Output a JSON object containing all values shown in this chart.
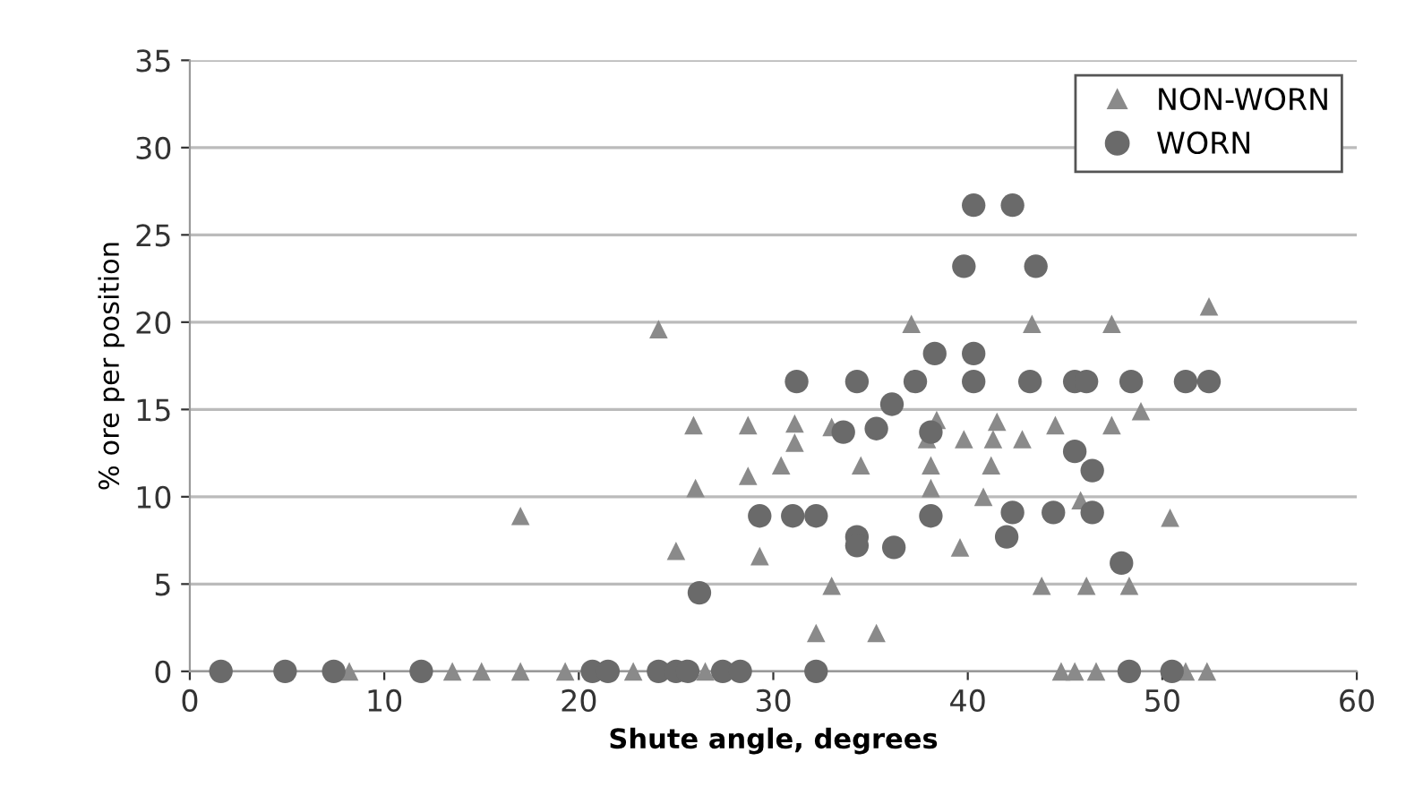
{
  "chart_data": {
    "type": "scatter",
    "xlabel": "Shute angle, degrees",
    "ylabel": "% ore per position",
    "xlim": [
      0,
      60
    ],
    "xticks": [
      0,
      10,
      20,
      30,
      40,
      50,
      60
    ],
    "ylim": [
      0,
      35
    ],
    "yticks": [
      0,
      5,
      10,
      15,
      20,
      25,
      30,
      35
    ],
    "grid": "y",
    "legend": "top right",
    "series": [
      {
        "name": "NON-WORN",
        "color": "#8a8a8a",
        "marker": "triangle",
        "x": [
          8.2,
          13.5,
          15.0,
          17.0,
          19.3,
          22.8,
          26.5,
          44.8,
          45.5,
          46.6,
          51.2,
          52.3,
          24.1,
          25.9,
          28.7,
          28.7,
          26.0,
          17.0,
          25.0,
          37.1,
          43.3,
          47.4,
          52.4,
          48.9,
          44.5,
          47.4,
          31.1,
          31.1,
          33.0,
          39.8,
          41.3,
          42.8,
          41.5,
          38.4,
          37.9,
          30.4,
          34.5,
          38.1,
          41.2,
          38.1,
          40.8,
          45.8,
          50.4,
          29.3,
          39.6,
          33.0,
          43.8,
          46.1,
          48.3,
          32.2,
          35.3
        ],
        "values": [
          0,
          0,
          0,
          0,
          0,
          0,
          0,
          0,
          0,
          0,
          0,
          0,
          19.6,
          14.1,
          14.1,
          11.2,
          10.5,
          8.9,
          6.9,
          19.9,
          19.9,
          19.9,
          20.9,
          14.9,
          14.1,
          14.1,
          14.2,
          13.1,
          14.0,
          13.3,
          13.3,
          13.3,
          14.3,
          14.4,
          13.3,
          11.8,
          11.8,
          11.8,
          11.8,
          10.5,
          10.0,
          9.8,
          8.8,
          6.6,
          7.1,
          4.9,
          4.9,
          4.9,
          4.9,
          2.2,
          2.2
        ]
      },
      {
        "name": "WORN",
        "color": "#6a6a6a",
        "marker": "circle",
        "x": [
          1.6,
          4.9,
          7.4,
          11.9,
          20.7,
          21.5,
          24.1,
          25.0,
          25.6,
          27.4,
          28.3,
          26.2,
          40.3,
          42.3,
          39.8,
          43.5,
          38.3,
          40.3,
          31.2,
          34.3,
          37.3,
          40.3,
          43.2,
          45.5,
          46.1,
          48.4,
          51.2,
          52.4,
          36.1,
          35.3,
          33.6,
          38.1,
          45.5,
          46.4,
          29.3,
          31.0,
          32.2,
          38.1,
          42.3,
          44.4,
          46.4,
          34.3,
          34.3,
          36.2,
          42.0,
          47.9,
          32.2,
          48.3,
          50.5
        ],
        "values": [
          0,
          0,
          0,
          0,
          0,
          0,
          0,
          0,
          0,
          0,
          0,
          4.5,
          26.7,
          26.7,
          23.2,
          23.2,
          18.2,
          18.2,
          16.6,
          16.6,
          16.6,
          16.6,
          16.6,
          16.6,
          16.6,
          16.6,
          16.6,
          16.6,
          15.3,
          13.9,
          13.7,
          13.7,
          12.6,
          11.5,
          8.9,
          8.9,
          8.9,
          8.9,
          9.1,
          9.1,
          9.1,
          7.7,
          7.2,
          7.1,
          7.7,
          6.2,
          0,
          0,
          0
        ]
      }
    ]
  }
}
